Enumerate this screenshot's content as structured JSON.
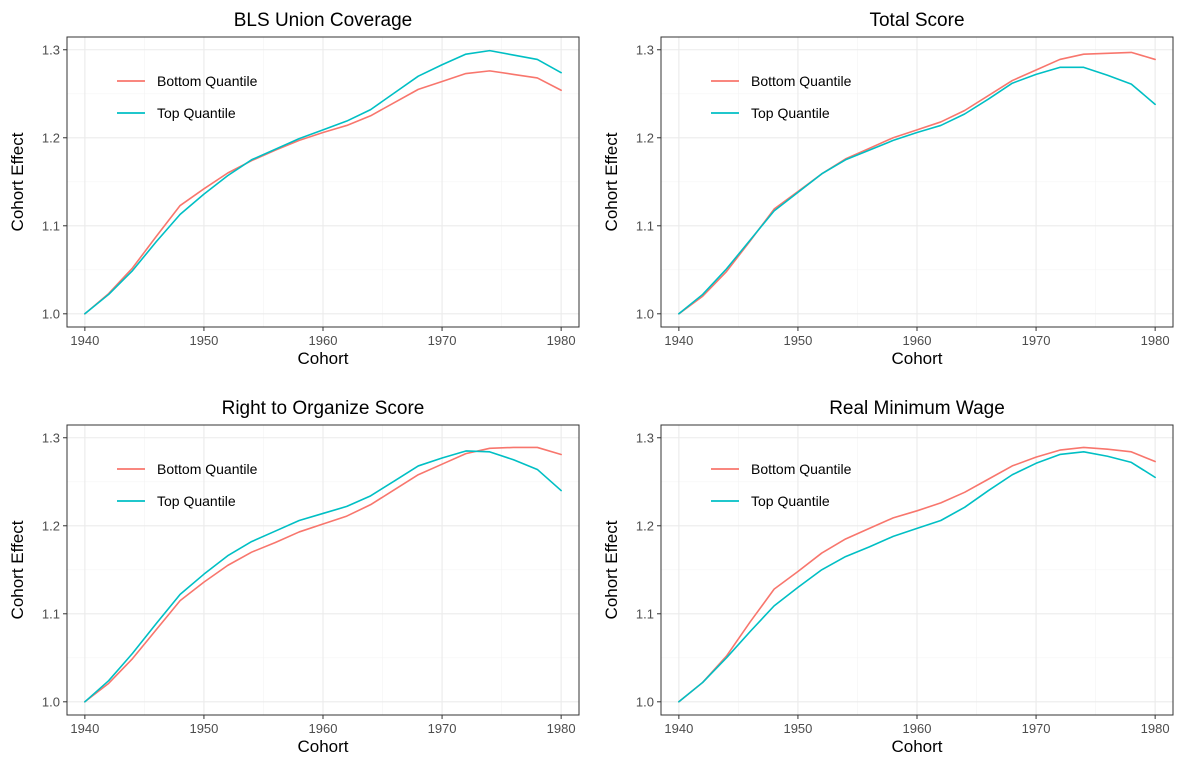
{
  "chart_data": [
    {
      "type": "line",
      "title": "BLS Union Coverage",
      "xlabel": "Cohort",
      "ylabel": "Cohort Effect",
      "xlim": [
        1938.5,
        1981.5
      ],
      "ylim": [
        0.985,
        1.3145
      ],
      "xticks": [
        1940,
        1950,
        1960,
        1970,
        1980
      ],
      "yticks": [
        1.0,
        1.1,
        1.2,
        1.3
      ],
      "x": [
        1940,
        1942,
        1944,
        1946,
        1948,
        1950,
        1952,
        1954,
        1956,
        1958,
        1960,
        1962,
        1964,
        1966,
        1968,
        1970,
        1972,
        1974,
        1976,
        1978,
        1980
      ],
      "series": [
        {
          "name": "Bottom Quantile",
          "color": "#F8766D",
          "values": [
            1.0,
            1.023,
            1.052,
            1.088,
            1.123,
            1.142,
            1.16,
            1.174,
            1.186,
            1.197,
            1.206,
            1.214,
            1.225,
            1.24,
            1.255,
            1.264,
            1.273,
            1.276,
            1.272,
            1.268,
            1.254
          ]
        },
        {
          "name": "Top Quantile",
          "color": "#00BFC4",
          "values": [
            1.0,
            1.022,
            1.049,
            1.082,
            1.113,
            1.136,
            1.157,
            1.175,
            1.187,
            1.199,
            1.209,
            1.219,
            1.232,
            1.251,
            1.27,
            1.283,
            1.295,
            1.299,
            1.294,
            1.289,
            1.274
          ]
        }
      ],
      "legend": "top-left"
    },
    {
      "type": "line",
      "title": "Total Score",
      "xlabel": "Cohort",
      "ylabel": "Cohort Effect",
      "xlim": [
        1938.5,
        1981.5
      ],
      "ylim": [
        0.985,
        1.3145
      ],
      "xticks": [
        1940,
        1950,
        1960,
        1970,
        1980
      ],
      "yticks": [
        1.0,
        1.1,
        1.2,
        1.3
      ],
      "x": [
        1940,
        1942,
        1944,
        1946,
        1948,
        1950,
        1952,
        1954,
        1956,
        1958,
        1960,
        1962,
        1964,
        1966,
        1968,
        1970,
        1972,
        1974,
        1976,
        1978,
        1980
      ],
      "series": [
        {
          "name": "Bottom Quantile",
          "color": "#F8766D",
          "values": [
            1.0,
            1.02,
            1.048,
            1.083,
            1.119,
            1.139,
            1.159,
            1.176,
            1.188,
            1.2,
            1.209,
            1.218,
            1.231,
            1.248,
            1.265,
            1.277,
            1.289,
            1.295,
            1.296,
            1.297,
            1.289
          ]
        },
        {
          "name": "Top Quantile",
          "color": "#00BFC4",
          "values": [
            1.0,
            1.022,
            1.051,
            1.084,
            1.117,
            1.138,
            1.159,
            1.175,
            1.186,
            1.197,
            1.206,
            1.214,
            1.227,
            1.244,
            1.262,
            1.272,
            1.28,
            1.28,
            1.271,
            1.261,
            1.238
          ]
        }
      ],
      "legend": "top-left"
    },
    {
      "type": "line",
      "title": "Right to Organize Score",
      "xlabel": "Cohort",
      "ylabel": "Cohort Effect",
      "xlim": [
        1938.5,
        1981.5
      ],
      "ylim": [
        0.985,
        1.3145
      ],
      "xticks": [
        1940,
        1950,
        1960,
        1970,
        1980
      ],
      "yticks": [
        1.0,
        1.1,
        1.2,
        1.3
      ],
      "x": [
        1940,
        1942,
        1944,
        1946,
        1948,
        1950,
        1952,
        1954,
        1956,
        1958,
        1960,
        1962,
        1964,
        1966,
        1968,
        1970,
        1972,
        1974,
        1976,
        1978,
        1980
      ],
      "series": [
        {
          "name": "Bottom Quantile",
          "color": "#F8766D",
          "values": [
            1.0,
            1.021,
            1.049,
            1.082,
            1.115,
            1.136,
            1.155,
            1.17,
            1.181,
            1.193,
            1.202,
            1.211,
            1.224,
            1.241,
            1.258,
            1.27,
            1.282,
            1.288,
            1.289,
            1.289,
            1.281
          ]
        },
        {
          "name": "Top Quantile",
          "color": "#00BFC4",
          "values": [
            1.0,
            1.024,
            1.055,
            1.089,
            1.122,
            1.145,
            1.166,
            1.182,
            1.194,
            1.206,
            1.214,
            1.222,
            1.234,
            1.251,
            1.268,
            1.277,
            1.285,
            1.284,
            1.275,
            1.264,
            1.24
          ]
        }
      ],
      "legend": "top-left"
    },
    {
      "type": "line",
      "title": "Real Minimum Wage",
      "xlabel": "Cohort",
      "ylabel": "Cohort Effect",
      "xlim": [
        1938.5,
        1981.5
      ],
      "ylim": [
        0.985,
        1.3145
      ],
      "xticks": [
        1940,
        1950,
        1960,
        1970,
        1980
      ],
      "yticks": [
        1.0,
        1.1,
        1.2,
        1.3
      ],
      "x": [
        1940,
        1942,
        1944,
        1946,
        1948,
        1950,
        1952,
        1954,
        1956,
        1958,
        1960,
        1962,
        1964,
        1966,
        1968,
        1970,
        1972,
        1974,
        1976,
        1978,
        1980
      ],
      "series": [
        {
          "name": "Bottom Quantile",
          "color": "#F8766D",
          "values": [
            1.0,
            1.022,
            1.052,
            1.091,
            1.128,
            1.148,
            1.169,
            1.185,
            1.197,
            1.209,
            1.217,
            1.226,
            1.238,
            1.253,
            1.268,
            1.278,
            1.286,
            1.289,
            1.287,
            1.284,
            1.273
          ]
        },
        {
          "name": "Top Quantile",
          "color": "#00BFC4",
          "values": [
            1.0,
            1.022,
            1.05,
            1.08,
            1.109,
            1.13,
            1.15,
            1.165,
            1.176,
            1.188,
            1.197,
            1.206,
            1.221,
            1.24,
            1.258,
            1.271,
            1.281,
            1.284,
            1.279,
            1.272,
            1.255
          ]
        }
      ],
      "legend": "top-left"
    }
  ]
}
